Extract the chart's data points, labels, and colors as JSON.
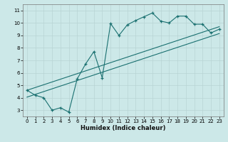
{
  "xlabel": "Humidex (Indice chaleur)",
  "bg_color": "#cce8e8",
  "grid_color": "#b8d4d4",
  "line_color": "#1a7070",
  "xlim": [
    -0.5,
    23.5
  ],
  "ylim": [
    2.5,
    11.5
  ],
  "xticks": [
    0,
    1,
    2,
    3,
    4,
    5,
    6,
    7,
    8,
    9,
    10,
    11,
    12,
    13,
    14,
    15,
    16,
    17,
    18,
    19,
    20,
    21,
    22,
    23
  ],
  "yticks": [
    3,
    4,
    5,
    6,
    7,
    8,
    9,
    10,
    11
  ],
  "series1_x": [
    0,
    1,
    2,
    3,
    4,
    5,
    6,
    7,
    8,
    9,
    10,
    11,
    12,
    13,
    14,
    15,
    16,
    17,
    18,
    19,
    20,
    21,
    22,
    23
  ],
  "series1_y": [
    4.6,
    4.2,
    4.0,
    3.0,
    3.2,
    2.85,
    5.5,
    6.7,
    7.7,
    5.6,
    9.95,
    9.0,
    9.85,
    10.2,
    10.5,
    10.8,
    10.15,
    10.0,
    10.55,
    10.55,
    9.9,
    9.9,
    9.2,
    9.5
  ],
  "series2_x": [
    0,
    23
  ],
  "series2_y": [
    4.6,
    9.7
  ],
  "series3_x": [
    0,
    23
  ],
  "series3_y": [
    4.05,
    9.15
  ]
}
